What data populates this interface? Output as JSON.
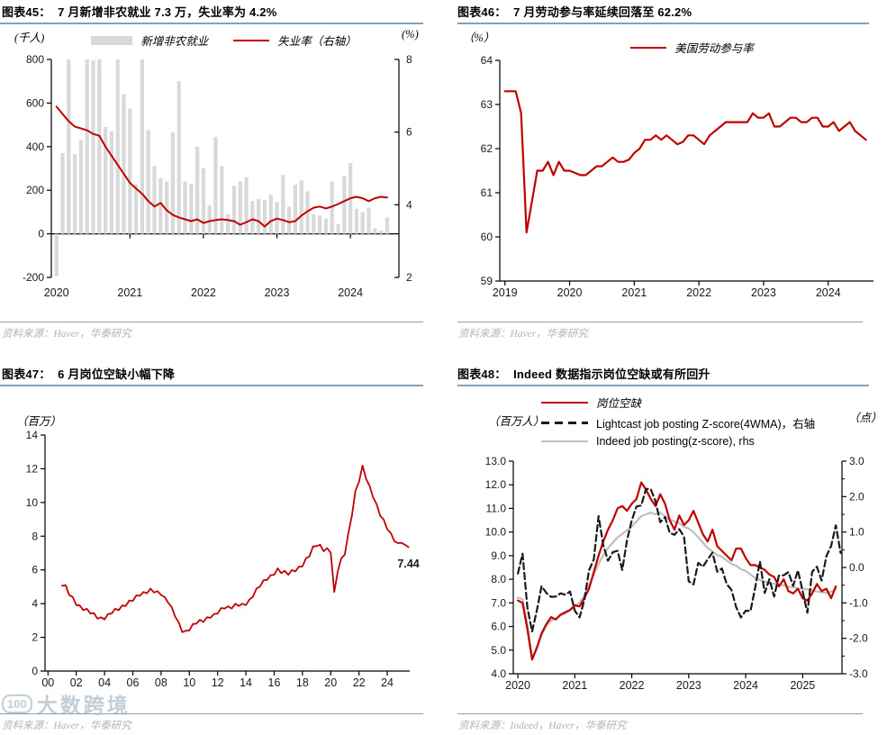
{
  "colors": {
    "red": "#c00000",
    "barGray": "#d9d9d9",
    "lineGray": "#bfbfbf",
    "dashBlack": "#1a1a1a",
    "rule": "#84a3b4",
    "source": "#b3b3b3",
    "axis": "#000000",
    "watermark": "#9db0be"
  },
  "watermark": {
    "logo": "100",
    "text": "大数跨境"
  },
  "panels": [
    {
      "source": "资料来源：Haver，华泰研究"
    },
    {
      "source": "资料来源：Haver，华泰研究"
    },
    {
      "source": "资料来源：Haver，华泰研究"
    },
    {
      "source": "资料来源：Indeed，Haver，华泰研究"
    }
  ],
  "chart_data": [
    {
      "type": "bar",
      "title": "图表45：  7 月新增非农就业 7.3 万，失业率为 4.2%",
      "ylabel_left": "(千人)",
      "ylabel_right": "(%)",
      "legend": [
        "新增非农就业",
        "失业率（右轴）"
      ],
      "legend_position": "top-center",
      "grid": false,
      "x": {
        "min": 2019.93,
        "max": 2024.66,
        "ticks": [
          [
            2020,
            "2020"
          ],
          [
            2021,
            "2021"
          ],
          [
            2022,
            "2022"
          ],
          [
            2023,
            "2023"
          ],
          [
            2024,
            "2024"
          ]
        ]
      },
      "y_left": {
        "min": -200,
        "max": 800,
        "ticks": [
          [
            800,
            "800"
          ],
          [
            600,
            "600"
          ],
          [
            400,
            "400"
          ],
          [
            200,
            "200"
          ],
          [
            0,
            "0"
          ],
          [
            -200,
            "-200"
          ]
        ]
      },
      "y_right": {
        "min": 2,
        "max": 8,
        "ticks": [
          [
            8,
            "8"
          ],
          [
            6,
            "6"
          ],
          [
            4,
            "4"
          ],
          [
            2,
            "2"
          ]
        ]
      },
      "series": [
        {
          "name": "新增非农就业",
          "type": "bar",
          "axis": "left",
          "color": "barGray",
          "x0": 2020.0,
          "dx": 0.08333,
          "values": [
            -195,
            370,
            800,
            365,
            430,
            800,
            795,
            800,
            490,
            470,
            800,
            640,
            575,
            228,
            800,
            475,
            310,
            255,
            240,
            465,
            700,
            240,
            230,
            400,
            300,
            130,
            445,
            310,
            90,
            220,
            240,
            260,
            150,
            160,
            155,
            180,
            145,
            270,
            125,
            225,
            245,
            195,
            90,
            85,
            70,
            240,
            45,
            265,
            325,
            115,
            100,
            120,
            25,
            15,
            75
          ]
        },
        {
          "name": "失业率（右轴）",
          "type": "line",
          "axis": "right",
          "color": "red",
          "width": 2,
          "x0": 2020.0,
          "dx": 0.08333,
          "values": [
            6.7,
            6.5,
            6.3,
            6.15,
            6.1,
            6.05,
            5.95,
            5.9,
            5.6,
            5.35,
            5.1,
            4.85,
            4.6,
            4.45,
            4.3,
            4.1,
            3.95,
            4.05,
            3.85,
            3.72,
            3.65,
            3.6,
            3.55,
            3.6,
            3.5,
            3.55,
            3.58,
            3.6,
            3.58,
            3.55,
            3.45,
            3.52,
            3.6,
            3.55,
            3.4,
            3.55,
            3.62,
            3.58,
            3.52,
            3.55,
            3.7,
            3.82,
            3.92,
            3.95,
            3.9,
            3.95,
            4.02,
            4.1,
            4.18,
            4.22,
            4.18,
            4.1,
            4.18,
            4.22,
            4.2
          ]
        }
      ],
      "annotations": []
    },
    {
      "type": "line",
      "title": "图表46：  7 月劳动参与率延续回落至 62.2%",
      "ylabel_left": "（%）",
      "legend": [
        "美国劳动参与率"
      ],
      "legend_position": "top-center",
      "grid": false,
      "x": {
        "min": 2018.92,
        "max": 2024.7,
        "ticks": [
          [
            2019,
            "2019"
          ],
          [
            2020,
            "2020"
          ],
          [
            2021,
            "2021"
          ],
          [
            2022,
            "2022"
          ],
          [
            2023,
            "2023"
          ],
          [
            2024,
            "2024"
          ]
        ]
      },
      "y_left": {
        "min": 59,
        "max": 64,
        "ticks": [
          [
            64,
            "64"
          ],
          [
            63,
            "63"
          ],
          [
            62,
            "62"
          ],
          [
            61,
            "61"
          ],
          [
            60,
            "60"
          ],
          [
            59,
            "59"
          ]
        ]
      },
      "y_right": null,
      "series": [
        {
          "name": "美国劳动参与率",
          "type": "line",
          "axis": "left",
          "color": "red",
          "width": 2.2,
          "x0": 2019.0,
          "dx": 0.08333,
          "values": [
            63.3,
            63.3,
            63.3,
            62.8,
            60.1,
            60.8,
            61.5,
            61.5,
            61.7,
            61.4,
            61.7,
            61.5,
            61.5,
            61.45,
            61.4,
            61.4,
            61.5,
            61.6,
            61.6,
            61.7,
            61.8,
            61.7,
            61.7,
            61.75,
            61.9,
            62.0,
            62.2,
            62.2,
            62.3,
            62.2,
            62.3,
            62.2,
            62.1,
            62.15,
            62.3,
            62.3,
            62.2,
            62.1,
            62.3,
            62.4,
            62.5,
            62.6,
            62.6,
            62.6,
            62.6,
            62.6,
            62.8,
            62.7,
            62.7,
            62.8,
            62.5,
            62.5,
            62.6,
            62.7,
            62.7,
            62.6,
            62.6,
            62.7,
            62.7,
            62.5,
            62.5,
            62.6,
            62.4,
            62.5,
            62.6,
            62.4,
            62.3,
            62.2
          ]
        }
      ],
      "annotations": []
    },
    {
      "type": "line",
      "title": "图表47：  6 月岗位空缺小幅下降",
      "ylabel_left": "（百万）",
      "legend": [],
      "grid": false,
      "x": {
        "min": 1999.79,
        "max": 2025.59,
        "ticks": [
          [
            2000,
            "00"
          ],
          [
            2002,
            "02"
          ],
          [
            2004,
            "04"
          ],
          [
            2006,
            "06"
          ],
          [
            2008,
            "08"
          ],
          [
            2010,
            "10"
          ],
          [
            2012,
            "12"
          ],
          [
            2014,
            "14"
          ],
          [
            2016,
            "16"
          ],
          [
            2018,
            "18"
          ],
          [
            2020,
            "20"
          ],
          [
            2022,
            "22"
          ],
          [
            2024,
            "24"
          ]
        ]
      },
      "y_left": {
        "min": 0,
        "max": 14,
        "ticks": [
          [
            14,
            "14"
          ],
          [
            12,
            "12"
          ],
          [
            10,
            "10"
          ],
          [
            8,
            "8"
          ],
          [
            6,
            "6"
          ],
          [
            4,
            "4"
          ],
          [
            2,
            "2"
          ],
          [
            0,
            "0"
          ]
        ]
      },
      "y_right": null,
      "series": [
        {
          "name": "岗位空缺",
          "type": "line",
          "axis": "left",
          "color": "red",
          "width": 1.8,
          "jitter": 0.09,
          "x0": 2001.0,
          "dx": 0.25,
          "values": [
            5.15,
            5.0,
            4.6,
            4.3,
            4.0,
            3.8,
            3.7,
            3.6,
            3.5,
            3.35,
            3.2,
            3.1,
            3.15,
            3.3,
            3.5,
            3.6,
            3.7,
            3.8,
            3.95,
            4.1,
            4.25,
            4.4,
            4.55,
            4.6,
            4.7,
            4.8,
            4.75,
            4.65,
            4.6,
            4.3,
            4.15,
            3.7,
            3.3,
            2.8,
            2.4,
            2.3,
            2.5,
            2.7,
            2.9,
            2.95,
            3.0,
            3.1,
            3.25,
            3.3,
            3.5,
            3.65,
            3.8,
            3.75,
            3.8,
            3.9,
            3.95,
            3.9,
            4.0,
            4.15,
            4.5,
            4.8,
            5.1,
            5.3,
            5.5,
            5.6,
            5.8,
            6.0,
            5.9,
            5.85,
            5.8,
            5.9,
            6.0,
            6.1,
            6.3,
            6.6,
            6.9,
            7.3,
            7.5,
            7.4,
            7.2,
            7.2,
            7.1,
            4.6,
            6.0,
            6.6,
            7.0,
            8.1,
            9.3,
            10.6,
            11.3,
            12.1,
            11.5,
            10.9,
            10.4,
            9.8,
            9.3,
            8.9,
            8.5,
            8.1,
            7.8,
            7.5,
            7.7,
            7.4,
            7.44
          ]
        }
      ],
      "annotations": [
        {
          "x": 2025.5,
          "y": 6.15,
          "text": "7.44"
        }
      ]
    },
    {
      "type": "line",
      "title": "图表48：  Indeed 数据指示岗位空缺或有所回升",
      "ylabel_left": "（百万人）",
      "ylabel_right": "（点）",
      "legend": [
        "岗位空缺",
        "Lightcast job posting Z-score(4WMA)，右轴",
        "Indeed job posting(z-score), rhs"
      ],
      "legend_position": "top-left",
      "grid": false,
      "x": {
        "min": 2019.92,
        "max": 2025.69,
        "ticks": [
          [
            2020,
            "2020"
          ],
          [
            2021,
            "2021"
          ],
          [
            2022,
            "2022"
          ],
          [
            2023,
            "2023"
          ],
          [
            2024,
            "2024"
          ],
          [
            2025,
            "2025"
          ]
        ]
      },
      "y_left": {
        "min": 4,
        "max": 13,
        "ticks": [
          [
            13,
            "13.0"
          ],
          [
            12,
            "12.0"
          ],
          [
            11,
            "11.0"
          ],
          [
            10,
            "10.0"
          ],
          [
            9,
            "9.0"
          ],
          [
            8,
            "8.0"
          ],
          [
            7,
            "7.0"
          ],
          [
            6,
            "6.0"
          ],
          [
            5,
            "5.0"
          ],
          [
            4,
            "4.0"
          ]
        ]
      },
      "y_right": {
        "min": -3,
        "max": 3,
        "minor_step": 0.5,
        "ticks": [
          [
            3,
            "3.0"
          ],
          [
            2,
            "2.0"
          ],
          [
            1,
            "1.0"
          ],
          [
            0,
            "0.0"
          ],
          [
            -1,
            "-1.0"
          ],
          [
            -2,
            "-2.0"
          ],
          [
            -3,
            "-3.0"
          ]
        ]
      },
      "series": [
        {
          "name": "Indeed job posting(z-score), rhs",
          "type": "line",
          "axis": "right",
          "color": "lineGray",
          "width": 2.2,
          "x0": 2020.0,
          "dx": 0.08333,
          "values": [
            -0.85,
            -0.9,
            -1.6,
            -2.55,
            -2.3,
            -1.9,
            -1.65,
            -1.5,
            -1.45,
            -1.35,
            -1.3,
            -1.2,
            -1.1,
            -1.0,
            -0.8,
            -0.5,
            -0.2,
            0.1,
            0.35,
            0.55,
            0.7,
            0.85,
            0.95,
            1.05,
            1.15,
            1.3,
            1.45,
            1.5,
            1.55,
            1.5,
            1.55,
            1.45,
            1.35,
            1.3,
            1.25,
            1.15,
            1.1,
            1.0,
            0.85,
            0.7,
            0.55,
            0.45,
            0.35,
            0.3,
            0.2,
            0.1,
            0.05,
            -0.05,
            -0.1,
            -0.2,
            -0.3,
            -0.35,
            -0.4,
            -0.45,
            -0.45,
            -0.5,
            -0.5,
            -0.55,
            -0.55,
            -0.6,
            -0.6,
            -0.62,
            -0.65,
            -0.68,
            -0.7,
            -0.72,
            -0.68,
            -0.6
          ]
        },
        {
          "name": "岗位空缺",
          "type": "line",
          "axis": "left",
          "color": "red",
          "width": 2.2,
          "x0": 2020.0,
          "dx": 0.08333,
          "values": [
            7.1,
            7.0,
            5.9,
            4.6,
            5.1,
            5.7,
            6.1,
            6.4,
            6.3,
            6.5,
            6.6,
            6.7,
            6.9,
            6.85,
            7.2,
            7.6,
            8.3,
            9.0,
            9.6,
            10.1,
            10.5,
            11.0,
            11.1,
            10.9,
            11.2,
            11.4,
            12.1,
            11.8,
            11.4,
            11.1,
            11.6,
            11.2,
            10.5,
            10.1,
            10.7,
            10.3,
            10.5,
            10.9,
            10.4,
            9.9,
            9.6,
            10.1,
            9.4,
            9.2,
            9.0,
            8.8,
            9.3,
            9.3,
            8.9,
            8.6,
            8.6,
            8.5,
            8.4,
            8.2,
            8.1,
            7.7,
            8.0,
            7.5,
            7.4,
            7.6,
            7.2,
            7.1,
            7.4,
            7.8,
            7.5,
            7.6,
            7.2,
            7.7
          ]
        },
        {
          "name": "Lightcast job posting Z-score(4WMA)，右轴",
          "type": "line",
          "axis": "right",
          "color": "dashBlack",
          "width": 2.2,
          "dash": "7 4",
          "jitter": 0.12,
          "x0": 2020.0,
          "dx": 0.08333,
          "values": [
            -0.05,
            0.27,
            -1.0,
            -1.93,
            -1.1,
            -0.65,
            -0.6,
            -0.95,
            -0.7,
            -0.85,
            -0.65,
            -0.8,
            -1.1,
            -1.53,
            -0.8,
            -0.2,
            0.35,
            1.33,
            0.75,
            0.07,
            0.55,
            0.35,
            0.05,
            0.65,
            1.45,
            1.6,
            1.87,
            2.1,
            2.33,
            1.75,
            1.4,
            1.3,
            1.1,
            0.8,
            1.2,
            0.75,
            -0.27,
            -0.6,
            0.25,
            -0.1,
            0.35,
            0.3,
            0.0,
            -0.15,
            -0.35,
            -0.75,
            -1.0,
            -1.53,
            -1.1,
            -1.35,
            -0.45,
            0.05,
            -0.6,
            -0.45,
            -0.7,
            -0.35,
            -0.1,
            -0.25,
            -0.4,
            -0.2,
            -0.55,
            -1.4,
            0.0,
            -0.1,
            -0.25,
            0.2,
            0.73,
            1.07,
            0.53
          ]
        }
      ],
      "annotations": []
    }
  ]
}
